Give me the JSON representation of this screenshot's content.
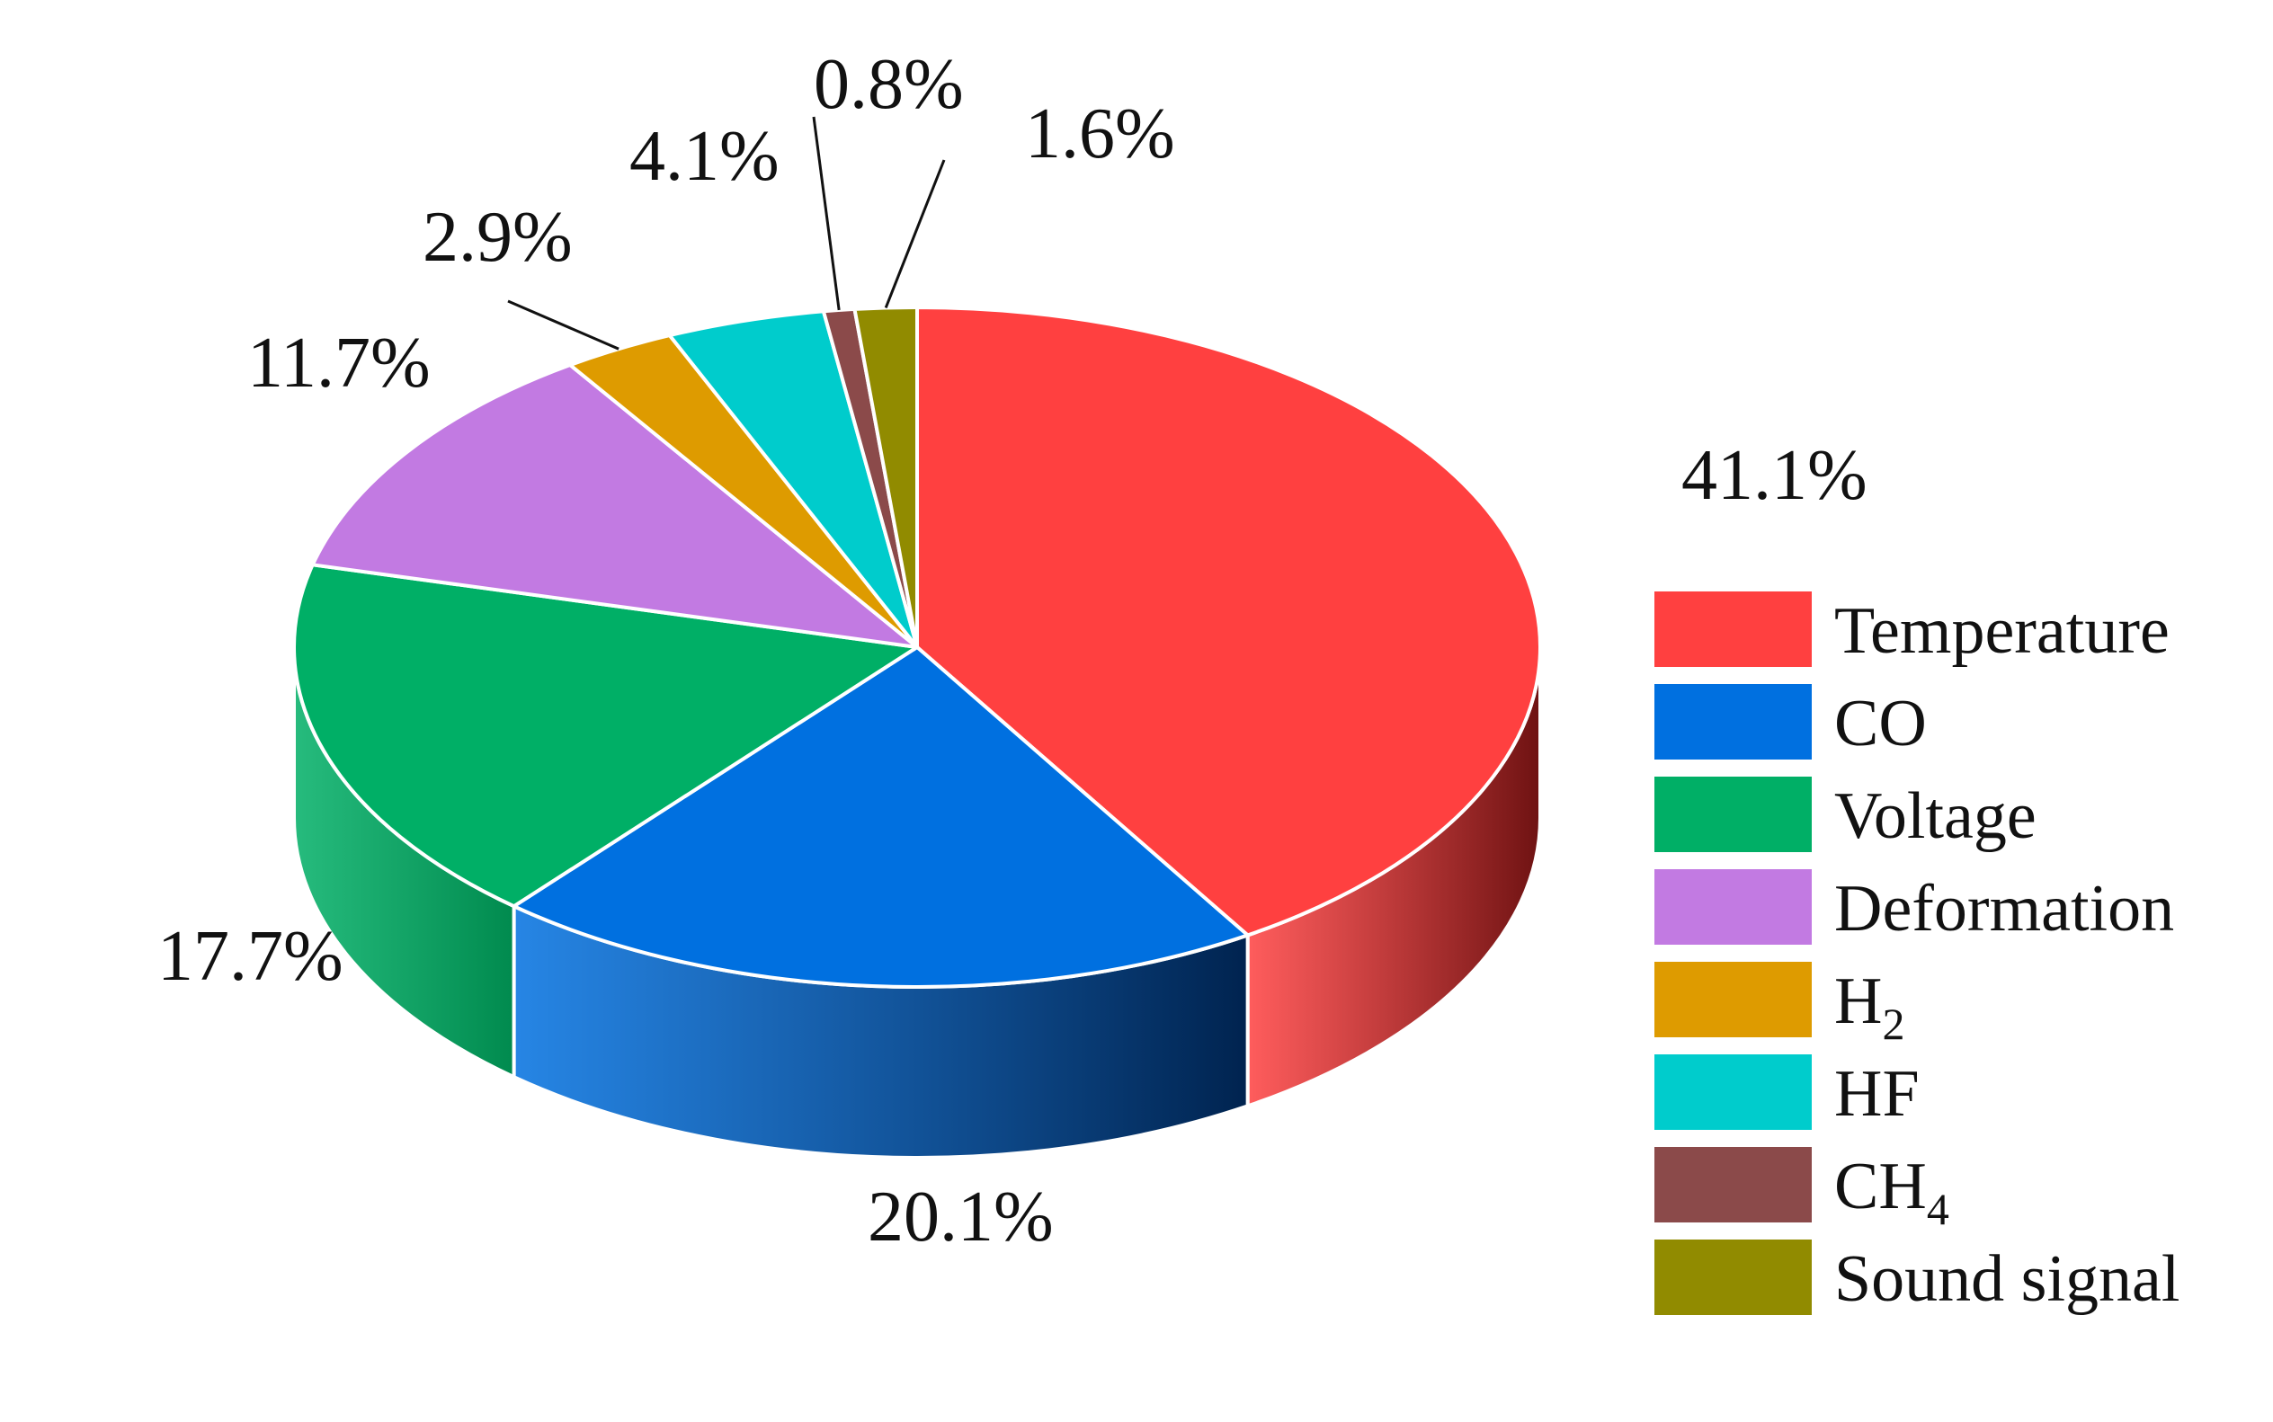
{
  "chart_data": {
    "type": "pie",
    "style": "3d",
    "title": "",
    "legend_position": "right",
    "slices": [
      {
        "name": "Temperature",
        "name_base": "Temperature",
        "name_sub": "",
        "value": 41.1,
        "label": "41.1%",
        "color": "#FF4040",
        "side_color": "#6E1212"
      },
      {
        "name": "CO",
        "name_base": "CO",
        "name_sub": "",
        "value": 20.1,
        "label": "20.1%",
        "color": "#0070E0",
        "side_color": "#00234F"
      },
      {
        "name": "Voltage",
        "name_base": "Voltage",
        "name_sub": "",
        "value": 17.7,
        "label": "17.7%",
        "color": "#00AF66",
        "side_color": "#008A4E"
      },
      {
        "name": "Deformation",
        "name_base": "Deformation",
        "name_sub": "",
        "value": 11.7,
        "label": "11.7%",
        "color": "#C27AE2",
        "side_color": "#9A5AB8"
      },
      {
        "name": "H2",
        "name_base": "H",
        "name_sub": "2",
        "value": 2.9,
        "label": "2.9%",
        "color": "#DE9B00",
        "side_color": "#A87500"
      },
      {
        "name": "HF",
        "name_base": "HF",
        "name_sub": "",
        "value": 4.1,
        "label": "4.1%",
        "color": "#00CCCC",
        "side_color": "#009999"
      },
      {
        "name": "CH4",
        "name_base": "CH",
        "name_sub": "4",
        "value": 0.8,
        "label": "0.8%",
        "color": "#8B4A4A",
        "side_color": "#5E3030"
      },
      {
        "name": "Sound signal",
        "name_base": "Sound signal",
        "name_sub": "",
        "value": 1.6,
        "label": "1.6%",
        "color": "#918B00",
        "side_color": "#6B6600"
      }
    ]
  }
}
